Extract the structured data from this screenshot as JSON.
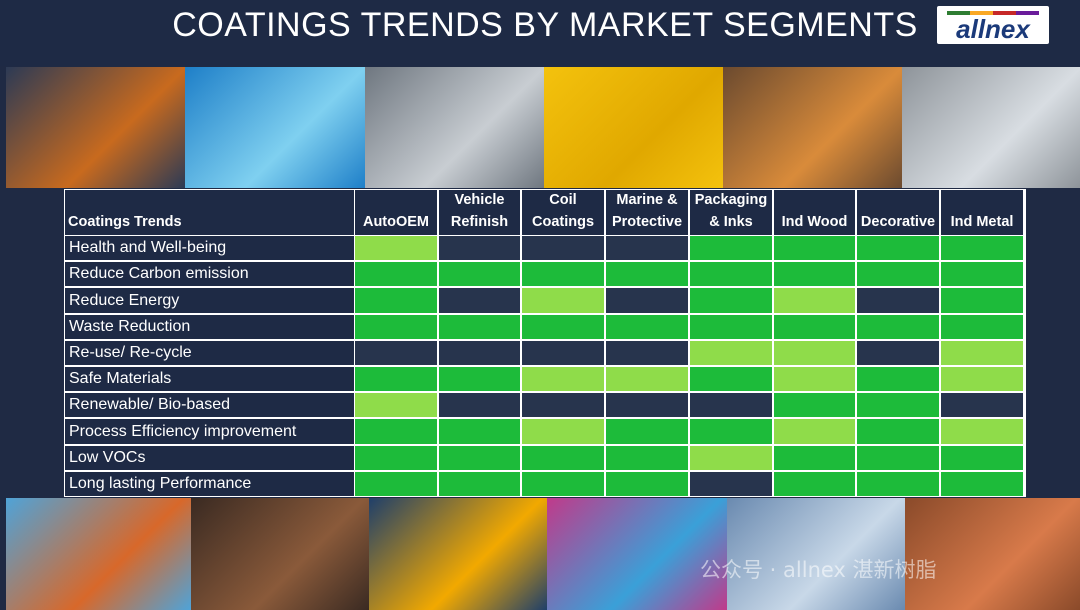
{
  "header": {
    "title": "COATINGS TRENDS BY MARKET SEGMENTS",
    "logo_text": "allnex"
  },
  "photos_top": [
    {
      "name": "tractor-photo",
      "c1": "#2c3a55",
      "c2": "#c86a1e"
    },
    {
      "name": "robot-car-photo",
      "c1": "#1e7fc8",
      "c2": "#7fd0f0"
    },
    {
      "name": "spray-painter-photo",
      "c1": "#6f7780",
      "c2": "#c8cdd2"
    },
    {
      "name": "yellow-brush-photo",
      "c1": "#f4c20d",
      "c2": "#e0a800"
    },
    {
      "name": "paint-cans-photo",
      "c1": "#6b4a2f",
      "c2": "#d98b3a"
    },
    {
      "name": "metal-cans-photo",
      "c1": "#8e949a",
      "c2": "#d8dde2"
    }
  ],
  "photos_bottom": [
    {
      "name": "shipping-containers-photo",
      "c1": "#4fa3d8",
      "c2": "#d8682a"
    },
    {
      "name": "wood-staining-photo",
      "c1": "#3a2a22",
      "c2": "#8a5a3a"
    },
    {
      "name": "excavator-photo",
      "c1": "#1f3f6a",
      "c2": "#f2a900"
    },
    {
      "name": "printing-press-photo",
      "c1": "#c03a8a",
      "c2": "#3aa0d8"
    },
    {
      "name": "metal-rolls-photo",
      "c1": "#6a8ab0",
      "c2": "#c8d8e8"
    },
    {
      "name": "wood-house-photo",
      "c1": "#8a4a2a",
      "c2": "#d87a4a"
    }
  ],
  "table": {
    "corner_header": "Coatings Trends",
    "segments": [
      [
        "AutoOEM"
      ],
      [
        "Vehicle",
        "Refinish"
      ],
      [
        "Coil",
        "Coatings"
      ],
      [
        "Marine &",
        "Protective"
      ],
      [
        "Packaging",
        "& Inks"
      ],
      [
        "Ind Wood"
      ],
      [
        "Decorative"
      ],
      [
        "Ind Metal"
      ]
    ],
    "rows": [
      {
        "label": "Health and Well-being",
        "levels": [
          1,
          0,
          0,
          0,
          2,
          2,
          2,
          2
        ]
      },
      {
        "label": "Reduce Carbon emission",
        "levels": [
          2,
          2,
          2,
          2,
          2,
          2,
          2,
          2
        ]
      },
      {
        "label": "Reduce Energy",
        "levels": [
          2,
          0,
          1,
          0,
          2,
          1,
          0,
          2
        ]
      },
      {
        "label": "Waste Reduction",
        "levels": [
          2,
          2,
          2,
          2,
          2,
          2,
          2,
          2
        ]
      },
      {
        "label": "Re-use/ Re-cycle",
        "levels": [
          0,
          0,
          0,
          0,
          1,
          1,
          0,
          1
        ]
      },
      {
        "label": "Safe Materials",
        "levels": [
          2,
          2,
          1,
          1,
          2,
          1,
          2,
          1
        ]
      },
      {
        "label": "Renewable/ Bio-based",
        "levels": [
          1,
          0,
          0,
          0,
          0,
          2,
          2,
          0
        ]
      },
      {
        "label": "Process Efficiency improvement",
        "levels": [
          2,
          2,
          1,
          2,
          2,
          1,
          2,
          1
        ]
      },
      {
        "label": "Low VOCs",
        "levels": [
          2,
          2,
          2,
          2,
          1,
          2,
          2,
          2
        ]
      },
      {
        "label": "Long lasting Performance",
        "levels": [
          2,
          2,
          2,
          2,
          0,
          2,
          2,
          2
        ]
      }
    ],
    "level_colors": [
      "#27344d",
      "#8fdc4a",
      "#1dbb3a"
    ]
  },
  "watermark": "公众号 · allnex 湛新树脂"
}
